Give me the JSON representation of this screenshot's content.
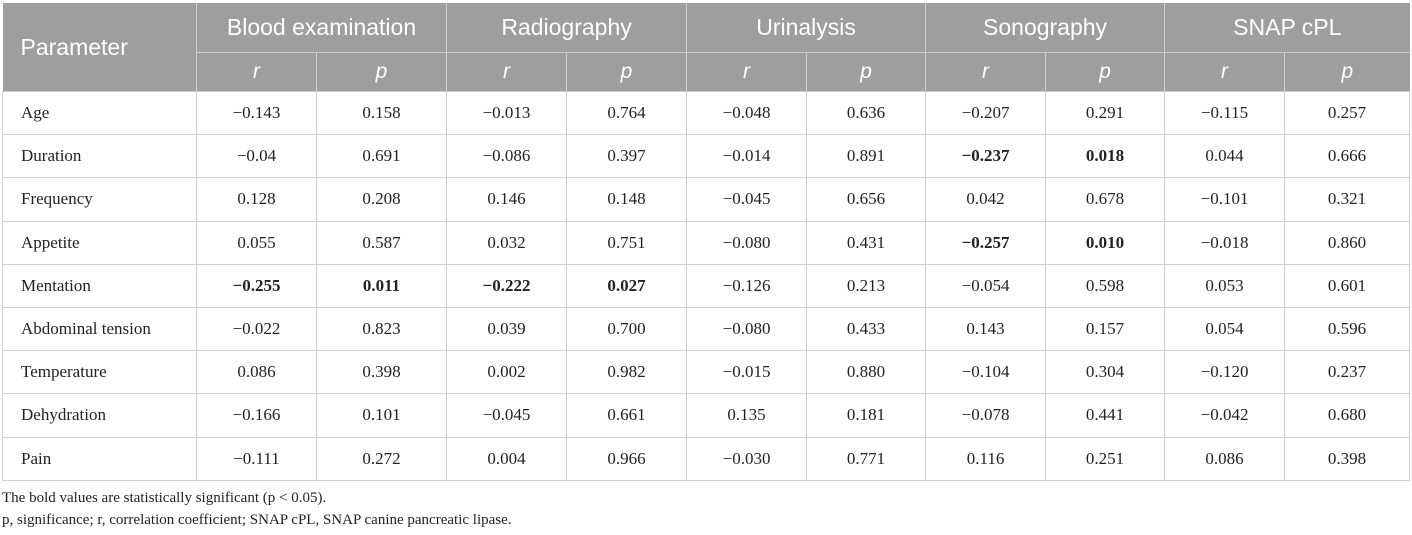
{
  "table": {
    "param_header": "Parameter",
    "groups": [
      {
        "label": "Blood examination",
        "r_label": "r",
        "p_label": "p"
      },
      {
        "label": "Radiography",
        "r_label": "r",
        "p_label": "p"
      },
      {
        "label": "Urinalysis",
        "r_label": "r",
        "p_label": "p"
      },
      {
        "label": "Sonography",
        "r_label": "r",
        "p_label": "p"
      },
      {
        "label": "SNAP cPL",
        "r_label": "r",
        "p_label": "p"
      }
    ],
    "rows": [
      {
        "label": "Age",
        "cells": [
          {
            "v": "−0.143",
            "bold": false
          },
          {
            "v": "0.158",
            "bold": false
          },
          {
            "v": "−0.013",
            "bold": false
          },
          {
            "v": "0.764",
            "bold": false
          },
          {
            "v": "−0.048",
            "bold": false
          },
          {
            "v": "0.636",
            "bold": false
          },
          {
            "v": "−0.207",
            "bold": false
          },
          {
            "v": "0.291",
            "bold": false
          },
          {
            "v": "−0.115",
            "bold": false
          },
          {
            "v": "0.257",
            "bold": false
          }
        ]
      },
      {
        "label": "Duration",
        "cells": [
          {
            "v": "−0.04",
            "bold": false
          },
          {
            "v": "0.691",
            "bold": false
          },
          {
            "v": "−0.086",
            "bold": false
          },
          {
            "v": "0.397",
            "bold": false
          },
          {
            "v": "−0.014",
            "bold": false
          },
          {
            "v": "0.891",
            "bold": false
          },
          {
            "v": "−0.237",
            "bold": true
          },
          {
            "v": "0.018",
            "bold": true
          },
          {
            "v": "0.044",
            "bold": false
          },
          {
            "v": "0.666",
            "bold": false
          }
        ]
      },
      {
        "label": "Frequency",
        "cells": [
          {
            "v": "0.128",
            "bold": false
          },
          {
            "v": "0.208",
            "bold": false
          },
          {
            "v": "0.146",
            "bold": false
          },
          {
            "v": "0.148",
            "bold": false
          },
          {
            "v": "−0.045",
            "bold": false
          },
          {
            "v": "0.656",
            "bold": false
          },
          {
            "v": "0.042",
            "bold": false
          },
          {
            "v": "0.678",
            "bold": false
          },
          {
            "v": "−0.101",
            "bold": false
          },
          {
            "v": "0.321",
            "bold": false
          }
        ]
      },
      {
        "label": "Appetite",
        "cells": [
          {
            "v": "0.055",
            "bold": false
          },
          {
            "v": "0.587",
            "bold": false
          },
          {
            "v": "0.032",
            "bold": false
          },
          {
            "v": "0.751",
            "bold": false
          },
          {
            "v": "−0.080",
            "bold": false
          },
          {
            "v": "0.431",
            "bold": false
          },
          {
            "v": "−0.257",
            "bold": true
          },
          {
            "v": "0.010",
            "bold": true
          },
          {
            "v": "−0.018",
            "bold": false
          },
          {
            "v": "0.860",
            "bold": false
          }
        ]
      },
      {
        "label": "Mentation",
        "cells": [
          {
            "v": "−0.255",
            "bold": true
          },
          {
            "v": "0.011",
            "bold": true
          },
          {
            "v": "−0.222",
            "bold": true
          },
          {
            "v": "0.027",
            "bold": true
          },
          {
            "v": "−0.126",
            "bold": false
          },
          {
            "v": "0.213",
            "bold": false
          },
          {
            "v": "−0.054",
            "bold": false
          },
          {
            "v": "0.598",
            "bold": false
          },
          {
            "v": "0.053",
            "bold": false
          },
          {
            "v": "0.601",
            "bold": false
          }
        ]
      },
      {
        "label": "Abdominal tension",
        "cells": [
          {
            "v": "−0.022",
            "bold": false
          },
          {
            "v": "0.823",
            "bold": false
          },
          {
            "v": "0.039",
            "bold": false
          },
          {
            "v": "0.700",
            "bold": false
          },
          {
            "v": "−0.080",
            "bold": false
          },
          {
            "v": "0.433",
            "bold": false
          },
          {
            "v": "0.143",
            "bold": false
          },
          {
            "v": "0.157",
            "bold": false
          },
          {
            "v": "0.054",
            "bold": false
          },
          {
            "v": "0.596",
            "bold": false
          }
        ]
      },
      {
        "label": "Temperature",
        "cells": [
          {
            "v": "0.086",
            "bold": false
          },
          {
            "v": "0.398",
            "bold": false
          },
          {
            "v": "0.002",
            "bold": false
          },
          {
            "v": "0.982",
            "bold": false
          },
          {
            "v": "−0.015",
            "bold": false
          },
          {
            "v": "0.880",
            "bold": false
          },
          {
            "v": "−0.104",
            "bold": false
          },
          {
            "v": "0.304",
            "bold": false
          },
          {
            "v": "−0.120",
            "bold": false
          },
          {
            "v": "0.237",
            "bold": false
          }
        ]
      },
      {
        "label": "Dehydration",
        "cells": [
          {
            "v": "−0.166",
            "bold": false
          },
          {
            "v": "0.101",
            "bold": false
          },
          {
            "v": "−0.045",
            "bold": false
          },
          {
            "v": "0.661",
            "bold": false
          },
          {
            "v": "0.135",
            "bold": false
          },
          {
            "v": "0.181",
            "bold": false
          },
          {
            "v": "−0.078",
            "bold": false
          },
          {
            "v": "0.441",
            "bold": false
          },
          {
            "v": "−0.042",
            "bold": false
          },
          {
            "v": "0.680",
            "bold": false
          }
        ]
      },
      {
        "label": "Pain",
        "cells": [
          {
            "v": "−0.111",
            "bold": false
          },
          {
            "v": "0.272",
            "bold": false
          },
          {
            "v": "0.004",
            "bold": false
          },
          {
            "v": "0.966",
            "bold": false
          },
          {
            "v": "−0.030",
            "bold": false
          },
          {
            "v": "0.771",
            "bold": false
          },
          {
            "v": "0.116",
            "bold": false
          },
          {
            "v": "0.251",
            "bold": false
          },
          {
            "v": "0.086",
            "bold": false
          },
          {
            "v": "0.398",
            "bold": false
          }
        ]
      }
    ]
  },
  "footnotes": {
    "note1": "The bold values are statistically significant (p < 0.05).",
    "note2": "p, significance; r, correlation coefficient; SNAP cPL, SNAP canine pancreatic lipase."
  },
  "colors": {
    "header_bg": "#9e9e9e",
    "header_text": "#ffffff",
    "grid_line": "#cfcfcf",
    "body_text": "#222222"
  }
}
